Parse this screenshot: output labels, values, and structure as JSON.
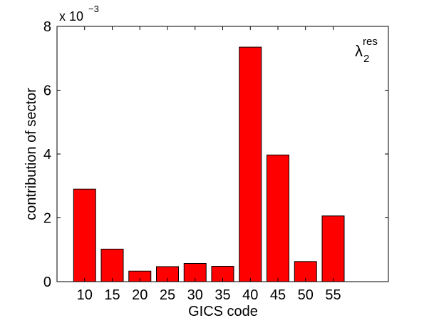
{
  "chart_data": {
    "type": "bar",
    "x": [
      10,
      15,
      20,
      25,
      30,
      35,
      40,
      45,
      50,
      55
    ],
    "values": [
      2.9,
      1.02,
      0.33,
      0.47,
      0.57,
      0.48,
      7.35,
      3.97,
      0.63,
      2.06
    ],
    "color": "#ff0000",
    "edge_color": "#000000",
    "xlim": [
      5,
      65
    ],
    "xticks": [
      10,
      15,
      20,
      25,
      30,
      35,
      40,
      45,
      50,
      55
    ],
    "ylim": [
      0,
      8
    ],
    "yticks": [
      0,
      2,
      4,
      6,
      8
    ],
    "xlabel": "GICS code",
    "ylabel": "contribution of sector",
    "multiplier": {
      "base": "x 10",
      "exponent": "−3"
    },
    "annotation": {
      "symbol": "λ",
      "subscript": "2",
      "superscript": "res"
    },
    "bar_width": 4
  }
}
